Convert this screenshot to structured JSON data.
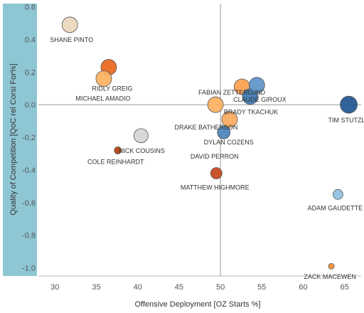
{
  "chart_data": {
    "type": "scatter",
    "xlabel": "Offensive Deployment [OZ Starts %]",
    "ylabel": "Quality of Competition [QoC rel Corsi For%]",
    "xlim": [
      28,
      67
    ],
    "ylim": [
      -1.05,
      0.62
    ],
    "xticks": [
      30,
      35,
      40,
      45,
      50,
      55,
      60,
      65
    ],
    "yticks": [
      0.6,
      0.4,
      0.2,
      0.0,
      -0.2,
      -0.4,
      -0.6,
      -0.8,
      -1.0
    ],
    "ytick_labels": [
      "0.6",
      "0.4",
      "0.2",
      "0.0",
      "-0.2",
      "-0.4",
      "-0.6",
      "-0.8",
      "-1.0"
    ],
    "reference_lines": {
      "x": 50,
      "y": 0
    },
    "y_axis_band_color": "#8fc6d4",
    "grid": false,
    "points": [
      {
        "name": "SHANE PINTO",
        "x": 31.8,
        "y": 0.49,
        "size": 11,
        "color": "#ead6bd",
        "label_anchor": "start",
        "label_dx": -28,
        "label_dy": 24
      },
      {
        "name": "RIDLY GREIG",
        "x": 36.5,
        "y": 0.23,
        "size": 11,
        "color": "#e8661c",
        "label_anchor": "middle",
        "label_dx": 5,
        "label_dy": 33
      },
      {
        "name": "MICHAEL AMADIO",
        "x": 35.9,
        "y": 0.16,
        "size": 11,
        "color": "#fdb261",
        "label_anchor": "middle",
        "label_dx": -1,
        "label_dy": 31
      },
      {
        "name": "NICK COUSINS",
        "x": 40.4,
        "y": -0.19,
        "size": 10,
        "color": "#d3d4d5",
        "label_anchor": "middle",
        "label_dx": 1,
        "label_dy": 24
      },
      {
        "name": "COLE REINHARDT",
        "x": 37.6,
        "y": -0.28,
        "size": 5,
        "color": "#b8400d",
        "label_anchor": "middle",
        "label_dx": -3,
        "label_dy": 19
      },
      {
        "name": "MATTHEW HIGHMORE",
        "x": 49.5,
        "y": -0.42,
        "size": 8,
        "color": "#c6461b",
        "label_anchor": "middle",
        "label_dx": -2,
        "label_dy": 23
      },
      {
        "name": "FABIAN ZETTERLUND",
        "x": 49.4,
        "y": 0.0,
        "size": 11,
        "color": "#fdb261",
        "label_anchor": "middle",
        "label_dx": 23,
        "label_dy": -14
      },
      {
        "name": "DRAKE BATHERSON",
        "x": 51.1,
        "y": -0.09,
        "size": 11,
        "color": "#fdab5e",
        "label_anchor": "middle",
        "label_dx": -33,
        "label_dy": 14
      },
      {
        "name": "CLAUDE GIROUX",
        "x": 52.6,
        "y": 0.11,
        "size": 11,
        "color": "#fda04e",
        "label_anchor": "middle",
        "label_dx": 25,
        "label_dy": 21
      },
      {
        "name": "BRADY TKACHUK",
        "x": 53.6,
        "y": 0.05,
        "size": 11,
        "color": "#3c79b4",
        "label_anchor": "middle",
        "label_dx": 1,
        "label_dy": 25
      },
      {
        "name": "",
        "x": 54.4,
        "y": 0.12,
        "size": 11,
        "color": "#5c92c8",
        "label_anchor": "middle",
        "label_dx": 0,
        "label_dy": 0
      },
      {
        "name": "DYLAN COZENS",
        "x": 50.4,
        "y": -0.17,
        "size": 9,
        "color": "#4a82bb",
        "label_anchor": "middle",
        "label_dx": 7,
        "label_dy": 17
      },
      {
        "name": "DAVID PERRON",
        "x": 50.4,
        "y": -0.17,
        "size": 0,
        "color": "#4a82bb",
        "label_anchor": "middle",
        "label_dx": -13,
        "label_dy": 37
      },
      {
        "name": "TIM STUTZLE",
        "x": 65.5,
        "y": 0.0,
        "size": 12,
        "color": "#1f5590",
        "label_anchor": "middle",
        "label_dx": 0,
        "label_dy": 25
      },
      {
        "name": "ADAM GAUDETTE",
        "x": 64.2,
        "y": -0.55,
        "size": 7,
        "color": "#8ec1e1",
        "label_anchor": "middle",
        "label_dx": -4,
        "label_dy": 22
      },
      {
        "name": "ZACK MACEWEN",
        "x": 63.4,
        "y": -0.99,
        "size": 4,
        "color": "#f5902f",
        "label_anchor": "middle",
        "label_dx": -2,
        "label_dy": 18
      }
    ]
  }
}
